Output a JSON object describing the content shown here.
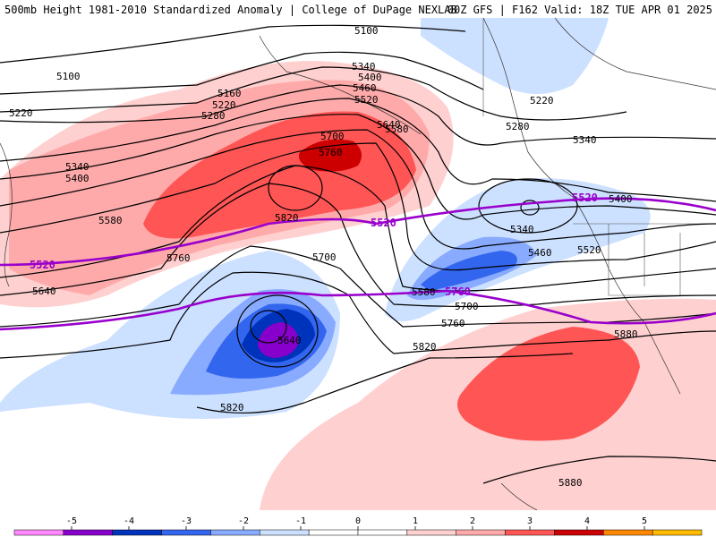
{
  "title_left": "500mb Height 1981-2010 Standardized Anomaly | College of DuPage NEXLAB",
  "title_right": "00Z GFS | F162 Valid: 18Z TUE APR 01 2025",
  "colors": {
    "pink": "#ff88ff",
    "violet": "#8800cc",
    "deep_blue": "#0033bb",
    "blue": "#3366ee",
    "mid_blue": "#88aaff",
    "light_blue": "#cce0ff",
    "light_pink": "#ffd0d0",
    "salmon": "#ffaaaa",
    "red": "#ff5555",
    "dark_red": "#cc0000",
    "orange": "#ff8800",
    "amber": "#ffbb00",
    "highlight_contour": "#9900cc"
  },
  "height_labels": [
    {
      "id": "h5100a",
      "text": "5100"
    },
    {
      "id": "h5100b",
      "text": "5100"
    },
    {
      "id": "h5160",
      "text": "5160"
    },
    {
      "id": "h5220a",
      "text": "5220"
    },
    {
      "id": "h5220b",
      "text": "5220"
    },
    {
      "id": "h5220c",
      "text": "5220"
    },
    {
      "id": "h5280a",
      "text": "5280"
    },
    {
      "id": "h5280b",
      "text": "5280"
    },
    {
      "id": "h5340a",
      "text": "5340"
    },
    {
      "id": "h5340b",
      "text": "5340"
    },
    {
      "id": "h5340c",
      "text": "5340"
    },
    {
      "id": "h5340d",
      "text": "5340"
    },
    {
      "id": "h5400a",
      "text": "5400"
    },
    {
      "id": "h5400b",
      "text": "5400"
    },
    {
      "id": "h5400c",
      "text": "5400"
    },
    {
      "id": "h5460a",
      "text": "5460"
    },
    {
      "id": "h5460b",
      "text": "5460"
    },
    {
      "id": "h5520a",
      "text": "5520"
    },
    {
      "id": "h5520b",
      "text": "5520"
    },
    {
      "id": "h5580a",
      "text": "5580"
    },
    {
      "id": "h5580b",
      "text": "5580"
    },
    {
      "id": "h5580c",
      "text": "5580"
    },
    {
      "id": "h5640a",
      "text": "5640"
    },
    {
      "id": "h5640b",
      "text": "5640"
    },
    {
      "id": "h5640c",
      "text": "5640"
    },
    {
      "id": "h5700a",
      "text": "5700"
    },
    {
      "id": "h5700b",
      "text": "5700"
    },
    {
      "id": "h5700c",
      "text": "5700"
    },
    {
      "id": "h5760a",
      "text": "5760"
    },
    {
      "id": "h5760b",
      "text": "5760"
    },
    {
      "id": "h5760c",
      "text": "5760"
    },
    {
      "id": "h5820a",
      "text": "5820"
    },
    {
      "id": "h5820b",
      "text": "5820"
    },
    {
      "id": "h5820c",
      "text": "5820"
    },
    {
      "id": "h5880a",
      "text": "5880"
    },
    {
      "id": "h5880b",
      "text": "5880"
    }
  ],
  "highlight_labels": [
    {
      "id": "k5520a",
      "text": "5520"
    },
    {
      "id": "k5520b",
      "text": "5520"
    },
    {
      "id": "k5520c",
      "text": "5520"
    },
    {
      "id": "k5760",
      "text": "5760"
    }
  ],
  "colorbar": {
    "ticks": [
      "-5",
      "-4",
      "-3",
      "-2",
      "-1",
      "0",
      "1",
      "2",
      "3",
      "4",
      "5"
    ],
    "segment_colors": [
      "#ff88ff",
      "#8800cc",
      "#0033bb",
      "#3366ee",
      "#88aaff",
      "#cce0ff",
      "#ffffff",
      "#ffffff",
      "#ffd0d0",
      "#ffaaaa",
      "#ff5555",
      "#cc0000",
      "#ff8800",
      "#ffbb00"
    ]
  }
}
